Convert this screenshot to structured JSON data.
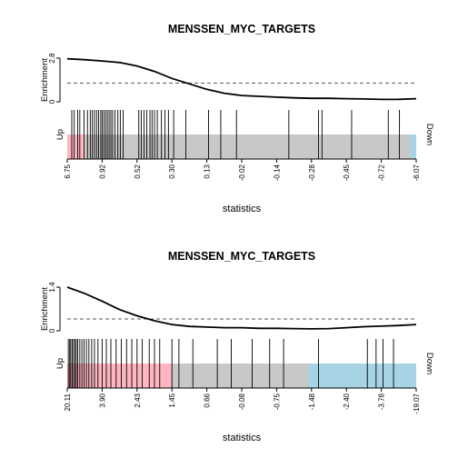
{
  "colors": {
    "up": "#ffb6c1",
    "down": "#a6d4e4",
    "neutral": "#c8c8c8",
    "curve": "#000000",
    "dashed": "#555555"
  },
  "chart_data": [
    {
      "type": "line",
      "title": "MENSSEN_MYC_TARGETS",
      "ylabel": "Enrichment",
      "xlabel": "statistics",
      "y_ticks": [
        "0",
        "2.8"
      ],
      "ylim": [
        0,
        2.8
      ],
      "threshold": 1.2,
      "up_label": "Up",
      "down_label": "Down",
      "x_tick_labels": [
        "6.75",
        "0.92",
        "0.52",
        "0.30",
        "0.13",
        "-0.02",
        "-0.14",
        "-0.28",
        "-0.45",
        "-0.72",
        "-6.07"
      ],
      "up_region_end": 0.05,
      "down_region_start": 0.983,
      "curve": {
        "x": [
          0,
          0.05,
          0.1,
          0.15,
          0.2,
          0.25,
          0.3,
          0.35,
          0.4,
          0.45,
          0.5,
          0.55,
          0.6,
          0.65,
          0.7,
          0.75,
          0.8,
          0.85,
          0.9,
          0.95,
          1.0
        ],
        "y": [
          2.76,
          2.7,
          2.62,
          2.52,
          2.3,
          1.95,
          1.5,
          1.15,
          0.8,
          0.55,
          0.4,
          0.35,
          0.3,
          0.25,
          0.22,
          0.22,
          0.2,
          0.18,
          0.15,
          0.16,
          0.2
        ]
      },
      "hits": [
        0.013,
        0.02,
        0.03,
        0.036,
        0.048,
        0.058,
        0.066,
        0.072,
        0.078,
        0.084,
        0.09,
        0.096,
        0.1,
        0.105,
        0.11,
        0.115,
        0.12,
        0.125,
        0.13,
        0.137,
        0.145,
        0.152,
        0.16,
        0.205,
        0.212,
        0.22,
        0.228,
        0.237,
        0.243,
        0.25,
        0.258,
        0.27,
        0.28,
        0.29,
        0.305,
        0.34,
        0.405,
        0.44,
        0.485,
        0.635,
        0.72,
        0.73,
        0.815,
        0.92,
        0.952
      ]
    },
    {
      "type": "line",
      "title": "MENSSEN_MYC_TARGETS",
      "ylabel": "Enrichment",
      "xlabel": "statistics",
      "y_ticks": [
        "0",
        "1.4"
      ],
      "ylim": [
        0,
        1.4
      ],
      "threshold": 0.38,
      "up_label": "Up",
      "down_label": "Down",
      "x_tick_labels": [
        "20.11",
        "3.90",
        "2.43",
        "1.45",
        "0.66",
        "-0.08",
        "-0.75",
        "-1.48",
        "-2.40",
        "-3.78",
        "-19.07"
      ],
      "up_region_end": 0.3,
      "down_region_start": 0.69,
      "curve": {
        "x": [
          0,
          0.05,
          0.1,
          0.15,
          0.2,
          0.25,
          0.3,
          0.35,
          0.4,
          0.45,
          0.5,
          0.55,
          0.6,
          0.65,
          0.7,
          0.75,
          0.8,
          0.85,
          0.9,
          0.95,
          1.0
        ],
        "y": [
          1.4,
          1.2,
          0.95,
          0.68,
          0.48,
          0.32,
          0.2,
          0.14,
          0.12,
          0.1,
          0.1,
          0.08,
          0.08,
          0.07,
          0.06,
          0.07,
          0.1,
          0.13,
          0.15,
          0.17,
          0.2
        ]
      },
      "hits": [
        0.003,
        0.007,
        0.01,
        0.014,
        0.018,
        0.022,
        0.026,
        0.03,
        0.036,
        0.042,
        0.048,
        0.055,
        0.062,
        0.07,
        0.078,
        0.088,
        0.1,
        0.112,
        0.125,
        0.14,
        0.155,
        0.17,
        0.185,
        0.2,
        0.215,
        0.235,
        0.25,
        0.265,
        0.3,
        0.32,
        0.36,
        0.43,
        0.47,
        0.53,
        0.58,
        0.62,
        0.72,
        0.86,
        0.885,
        0.905,
        0.935
      ]
    }
  ]
}
